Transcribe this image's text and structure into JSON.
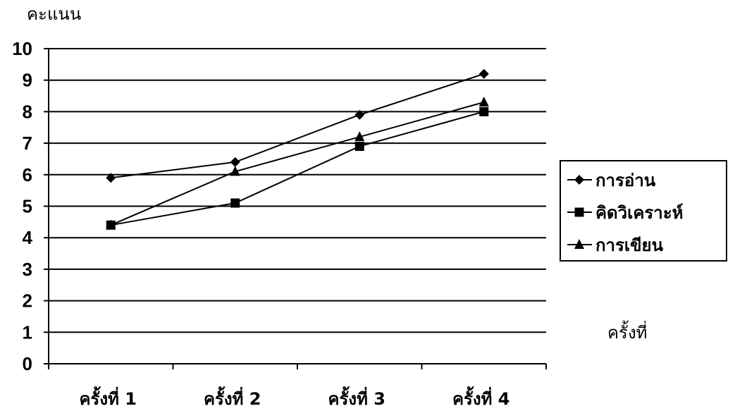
{
  "chart_data": {
    "type": "line",
    "ylabel": "คะแนน",
    "xlabel": "ครั้งที่",
    "categories": [
      "ครั้งที่ 1",
      "ครั้งที่ 2",
      "ครั้งที่ 3",
      "ครั้งที่ 4"
    ],
    "ylim": [
      0,
      10
    ],
    "yticks": [
      "0",
      "1",
      "2",
      "3",
      "4",
      "5",
      "6",
      "7",
      "8",
      "9",
      "10"
    ],
    "grid": true,
    "legend_position": "right",
    "series": [
      {
        "name": "การอ่าน",
        "marker": "diamond",
        "values": [
          5.9,
          6.4,
          7.9,
          9.2
        ]
      },
      {
        "name": "คิดวิเคราะห์",
        "marker": "square",
        "values": [
          4.4,
          5.1,
          6.9,
          8.0
        ]
      },
      {
        "name": "การเขียน",
        "marker": "triangle",
        "values": [
          4.4,
          6.1,
          7.2,
          8.3
        ]
      }
    ],
    "line_color": "#000000"
  }
}
